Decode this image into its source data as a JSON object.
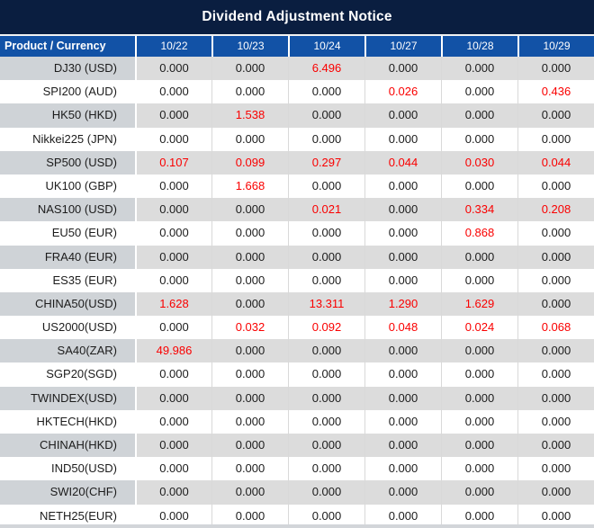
{
  "title": "Dividend Adjustment Notice",
  "colors": {
    "title_bg": "#0a1e40",
    "header_bg": "#1252a6",
    "row_gray": "#dcdcdc",
    "col1_gray": "#cfd3d7",
    "text_dark": "#1c1c1c",
    "accent_red": "#fa0000",
    "border_light": "#d9d9d9",
    "bottom_strip": "#d2d5d9"
  },
  "table": {
    "header": {
      "product_col": "Product / Currency",
      "dates": [
        "10/22",
        "10/23",
        "10/24",
        "10/27",
        "10/28",
        "10/29"
      ]
    },
    "rows": [
      {
        "product": "DJ30 (USD)",
        "values": [
          "0.000",
          "0.000",
          "6.496",
          "0.000",
          "0.000",
          "0.000"
        ]
      },
      {
        "product": "SPI200 (AUD)",
        "values": [
          "0.000",
          "0.000",
          "0.000",
          "0.026",
          "0.000",
          "0.436"
        ]
      },
      {
        "product": "HK50 (HKD)",
        "values": [
          "0.000",
          "1.538",
          "0.000",
          "0.000",
          "0.000",
          "0.000"
        ]
      },
      {
        "product": "Nikkei225 (JPN)",
        "values": [
          "0.000",
          "0.000",
          "0.000",
          "0.000",
          "0.000",
          "0.000"
        ]
      },
      {
        "product": "SP500 (USD)",
        "values": [
          "0.107",
          "0.099",
          "0.297",
          "0.044",
          "0.030",
          "0.044"
        ]
      },
      {
        "product": "UK100 (GBP)",
        "values": [
          "0.000",
          "1.668",
          "0.000",
          "0.000",
          "0.000",
          "0.000"
        ]
      },
      {
        "product": "NAS100 (USD)",
        "values": [
          "0.000",
          "0.000",
          "0.021",
          "0.000",
          "0.334",
          "0.208"
        ]
      },
      {
        "product": "EU50 (EUR)",
        "values": [
          "0.000",
          "0.000",
          "0.000",
          "0.000",
          "0.868",
          "0.000"
        ]
      },
      {
        "product": "FRA40 (EUR)",
        "values": [
          "0.000",
          "0.000",
          "0.000",
          "0.000",
          "0.000",
          "0.000"
        ]
      },
      {
        "product": "ES35 (EUR)",
        "values": [
          "0.000",
          "0.000",
          "0.000",
          "0.000",
          "0.000",
          "0.000"
        ]
      },
      {
        "product": "CHINA50(USD)",
        "values": [
          "1.628",
          "0.000",
          "13.311",
          "1.290",
          "1.629",
          "0.000"
        ]
      },
      {
        "product": "US2000(USD)",
        "values": [
          "0.000",
          "0.032",
          "0.092",
          "0.048",
          "0.024",
          "0.068"
        ]
      },
      {
        "product": "SA40(ZAR)",
        "values": [
          "49.986",
          "0.000",
          "0.000",
          "0.000",
          "0.000",
          "0.000"
        ]
      },
      {
        "product": "SGP20(SGD)",
        "values": [
          "0.000",
          "0.000",
          "0.000",
          "0.000",
          "0.000",
          "0.000"
        ]
      },
      {
        "product": "TWINDEX(USD)",
        "values": [
          "0.000",
          "0.000",
          "0.000",
          "0.000",
          "0.000",
          "0.000"
        ]
      },
      {
        "product": "HKTECH(HKD)",
        "values": [
          "0.000",
          "0.000",
          "0.000",
          "0.000",
          "0.000",
          "0.000"
        ]
      },
      {
        "product": "CHINAH(HKD)",
        "values": [
          "0.000",
          "0.000",
          "0.000",
          "0.000",
          "0.000",
          "0.000"
        ]
      },
      {
        "product": "IND50(USD)",
        "values": [
          "0.000",
          "0.000",
          "0.000",
          "0.000",
          "0.000",
          "0.000"
        ]
      },
      {
        "product": "SWI20(CHF)",
        "values": [
          "0.000",
          "0.000",
          "0.000",
          "0.000",
          "0.000",
          "0.000"
        ]
      },
      {
        "product": "NETH25(EUR)",
        "values": [
          "0.000",
          "0.000",
          "0.000",
          "0.000",
          "0.000",
          "0.000"
        ]
      }
    ]
  }
}
